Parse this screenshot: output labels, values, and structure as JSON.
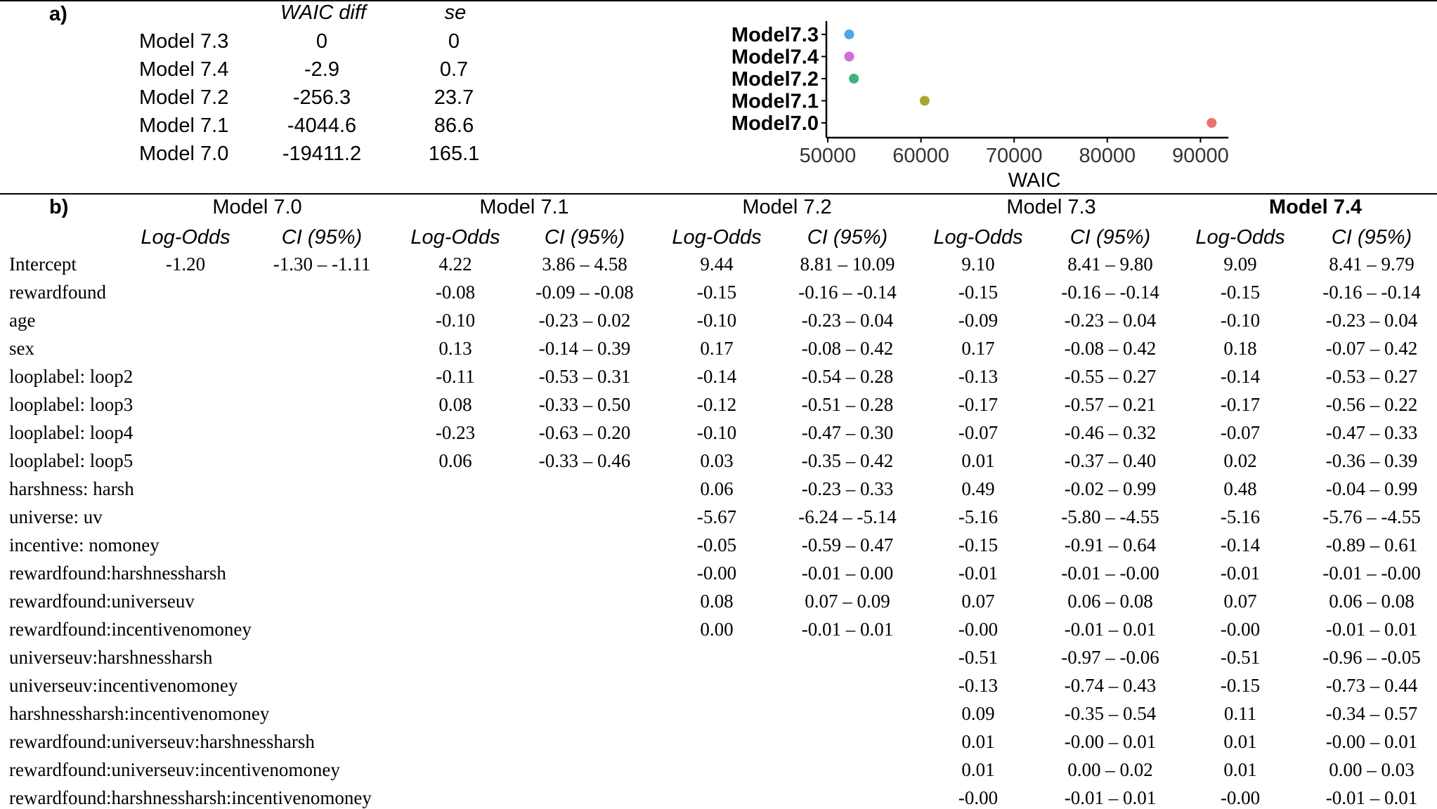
{
  "panel_a": {
    "label": "a)",
    "table": {
      "headers": [
        "WAIC diff",
        "se"
      ],
      "rows": [
        {
          "model": "Model 7.3",
          "waic_diff": "0",
          "se": "0"
        },
        {
          "model": "Model 7.4",
          "waic_diff": "-2.9",
          "se": "0.7"
        },
        {
          "model": "Model 7.2",
          "waic_diff": "-256.3",
          "se": "23.7"
        },
        {
          "model": "Model 7.1",
          "waic_diff": "-4044.6",
          "se": "86.6"
        },
        {
          "model": "Model 7.0",
          "waic_diff": "-19411.2",
          "se": "165.1"
        }
      ]
    }
  },
  "chart_data": {
    "type": "scatter",
    "title": "",
    "xlabel": "WAIC",
    "ylabel": "",
    "xlim": [
      48000,
      93000
    ],
    "xticks": [
      50000,
      60000,
      70000,
      80000,
      90000
    ],
    "xtick_labels": [
      "50000",
      "60000",
      "70000",
      "80000",
      "90000"
    ],
    "grid": false,
    "legend": "none",
    "points": [
      {
        "label": "Model7.3",
        "x": 52300,
        "color": "#4aa8e8"
      },
      {
        "label": "Model7.4",
        "x": 52300,
        "color": "#d36bd8"
      },
      {
        "label": "Model7.2",
        "x": 52800,
        "color": "#3fb37a"
      },
      {
        "label": "Model7.1",
        "x": 60400,
        "color": "#a8a535"
      },
      {
        "label": "Model7.0",
        "x": 91200,
        "color": "#ea7268"
      }
    ]
  },
  "panel_b": {
    "label": "b)",
    "models": [
      "Model 7.0",
      "Model 7.1",
      "Model 7.2",
      "Model 7.3",
      "Model 7.4"
    ],
    "bold_model_index": 4,
    "sub_headers": [
      "Log-Odds",
      "CI (95%)"
    ],
    "rows": [
      {
        "label": "Intercept",
        "values": [
          [
            "-1.20",
            "-1.30 – -1.11"
          ],
          [
            "4.22",
            "3.86 – 4.58"
          ],
          [
            "9.44",
            "8.81 – 10.09"
          ],
          [
            "9.10",
            "8.41 – 9.80"
          ],
          [
            "9.09",
            "8.41 – 9.79"
          ]
        ]
      },
      {
        "label": "rewardfound",
        "values": [
          [
            "",
            ""
          ],
          [
            "-0.08",
            "-0.09 – -0.08"
          ],
          [
            "-0.15",
            "-0.16 – -0.14"
          ],
          [
            "-0.15",
            "-0.16 – -0.14"
          ],
          [
            "-0.15",
            "-0.16 – -0.14"
          ]
        ]
      },
      {
        "label": "age",
        "values": [
          [
            "",
            ""
          ],
          [
            "-0.10",
            "-0.23 – 0.02"
          ],
          [
            "-0.10",
            "-0.23 – 0.04"
          ],
          [
            "-0.09",
            "-0.23 – 0.04"
          ],
          [
            "-0.10",
            "-0.23 – 0.04"
          ]
        ]
      },
      {
        "label": "sex",
        "values": [
          [
            "",
            ""
          ],
          [
            "0.13",
            "-0.14 – 0.39"
          ],
          [
            "0.17",
            "-0.08 – 0.42"
          ],
          [
            "0.17",
            "-0.08 – 0.42"
          ],
          [
            "0.18",
            "-0.07 – 0.42"
          ]
        ]
      },
      {
        "label": "looplabel: loop2",
        "values": [
          [
            "",
            ""
          ],
          [
            "-0.11",
            "-0.53 – 0.31"
          ],
          [
            "-0.14",
            "-0.54 – 0.28"
          ],
          [
            "-0.13",
            "-0.55 – 0.27"
          ],
          [
            "-0.14",
            "-0.53 – 0.27"
          ]
        ]
      },
      {
        "label": "looplabel: loop3",
        "values": [
          [
            "",
            ""
          ],
          [
            "0.08",
            "-0.33 – 0.50"
          ],
          [
            "-0.12",
            "-0.51 – 0.28"
          ],
          [
            "-0.17",
            "-0.57 – 0.21"
          ],
          [
            "-0.17",
            "-0.56 – 0.22"
          ]
        ]
      },
      {
        "label": "looplabel: loop4",
        "values": [
          [
            "",
            ""
          ],
          [
            "-0.23",
            "-0.63 – 0.20"
          ],
          [
            "-0.10",
            "-0.47 – 0.30"
          ],
          [
            "-0.07",
            "-0.46 – 0.32"
          ],
          [
            "-0.07",
            "-0.47 – 0.33"
          ]
        ]
      },
      {
        "label": "looplabel: loop5",
        "values": [
          [
            "",
            ""
          ],
          [
            "0.06",
            "-0.33 – 0.46"
          ],
          [
            "0.03",
            "-0.35 – 0.42"
          ],
          [
            "0.01",
            "-0.37 – 0.40"
          ],
          [
            "0.02",
            "-0.36 – 0.39"
          ]
        ]
      },
      {
        "label": "harshness: harsh",
        "values": [
          [
            "",
            ""
          ],
          [
            "",
            ""
          ],
          [
            "0.06",
            "-0.23 – 0.33"
          ],
          [
            "0.49",
            "-0.02 – 0.99"
          ],
          [
            "0.48",
            "-0.04 – 0.99"
          ]
        ]
      },
      {
        "label": "universe: uv",
        "values": [
          [
            "",
            ""
          ],
          [
            "",
            ""
          ],
          [
            "-5.67",
            "-6.24 – -5.14"
          ],
          [
            "-5.16",
            "-5.80 – -4.55"
          ],
          [
            "-5.16",
            "-5.76 – -4.55"
          ]
        ]
      },
      {
        "label": "incentive: nomoney",
        "values": [
          [
            "",
            ""
          ],
          [
            "",
            ""
          ],
          [
            "-0.05",
            "-0.59 – 0.47"
          ],
          [
            "-0.15",
            "-0.91 – 0.64"
          ],
          [
            "-0.14",
            "-0.89 – 0.61"
          ]
        ]
      },
      {
        "label": "rewardfound:harshnessharsh",
        "values": [
          [
            "",
            ""
          ],
          [
            "",
            ""
          ],
          [
            "-0.00",
            "-0.01 – 0.00"
          ],
          [
            "-0.01",
            "-0.01 – -0.00"
          ],
          [
            "-0.01",
            "-0.01 – -0.00"
          ]
        ]
      },
      {
        "label": "rewardfound:universeuv",
        "values": [
          [
            "",
            ""
          ],
          [
            "",
            ""
          ],
          [
            "0.08",
            "0.07 – 0.09"
          ],
          [
            "0.07",
            "0.06 – 0.08"
          ],
          [
            "0.07",
            "0.06 – 0.08"
          ]
        ]
      },
      {
        "label": "rewardfound:incentivenomoney",
        "values": [
          [
            "",
            ""
          ],
          [
            "",
            ""
          ],
          [
            "0.00",
            "-0.01 – 0.01"
          ],
          [
            "-0.00",
            "-0.01 – 0.01"
          ],
          [
            "-0.00",
            "-0.01 – 0.01"
          ]
        ]
      },
      {
        "label": "universeuv:harshnessharsh",
        "values": [
          [
            "",
            ""
          ],
          [
            "",
            ""
          ],
          [
            "",
            ""
          ],
          [
            "-0.51",
            "-0.97 – -0.06"
          ],
          [
            "-0.51",
            "-0.96 – -0.05"
          ]
        ]
      },
      {
        "label": "universeuv:incentivenomoney",
        "values": [
          [
            "",
            ""
          ],
          [
            "",
            ""
          ],
          [
            "",
            ""
          ],
          [
            "-0.13",
            "-0.74 – 0.43"
          ],
          [
            "-0.15",
            "-0.73 – 0.44"
          ]
        ]
      },
      {
        "label": "harshnessharsh:incentivenomoney",
        "values": [
          [
            "",
            ""
          ],
          [
            "",
            ""
          ],
          [
            "",
            ""
          ],
          [
            "0.09",
            "-0.35 – 0.54"
          ],
          [
            "0.11",
            "-0.34 – 0.57"
          ]
        ]
      },
      {
        "label": "rewardfound:universeuv:harshnessharsh",
        "values": [
          [
            "",
            ""
          ],
          [
            "",
            ""
          ],
          [
            "",
            ""
          ],
          [
            "0.01",
            "-0.00 – 0.01"
          ],
          [
            "0.01",
            "-0.00 – 0.01"
          ]
        ]
      },
      {
        "label": "rewardfound:universeuv:incentivenomoney",
        "values": [
          [
            "",
            ""
          ],
          [
            "",
            ""
          ],
          [
            "",
            ""
          ],
          [
            "0.01",
            "0.00 – 0.02"
          ],
          [
            "0.01",
            "0.00 – 0.03"
          ]
        ]
      },
      {
        "label": "rewardfound:harshnessharsh:incentivenomoney",
        "values": [
          [
            "",
            ""
          ],
          [
            "",
            ""
          ],
          [
            "",
            ""
          ],
          [
            "-0.00",
            "-0.01 – 0.01"
          ],
          [
            "-0.00",
            "-0.01 – 0.01"
          ]
        ]
      }
    ]
  }
}
